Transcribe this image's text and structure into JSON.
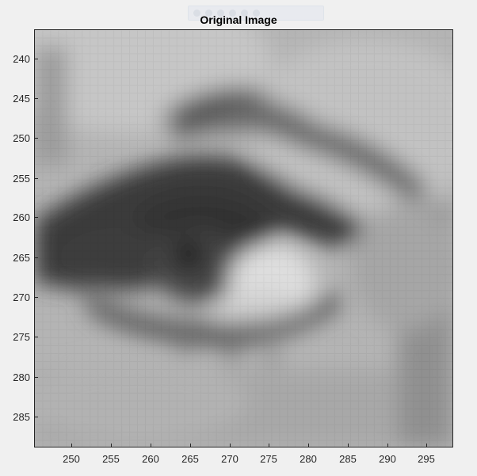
{
  "figure": {
    "title": "Original Image",
    "toolbar_icons": [
      "pan-icon",
      "zoom-in-icon",
      "zoom-out-icon",
      "rotate-icon",
      "data-cursor-icon",
      "home-icon"
    ]
  },
  "chart_data": {
    "type": "heatmap",
    "colormap": "gray",
    "title": "Original Image",
    "xlim": [
      245.5,
      298.5
    ],
    "ylim": [
      237.5,
      288.5
    ],
    "y_direction": "reverse",
    "x_ticks": [
      250,
      255,
      260,
      265,
      270,
      275,
      280,
      285,
      290,
      295
    ],
    "y_ticks": [
      240,
      245,
      250,
      255,
      260,
      265,
      270,
      275,
      280,
      285
    ],
    "x_tick_labels": [
      "250",
      "255",
      "260",
      "265",
      "270",
      "275",
      "280",
      "285",
      "290",
      "295"
    ],
    "y_tick_labels": [
      "240",
      "245",
      "250",
      "255",
      "260",
      "265",
      "270",
      "275",
      "280",
      "285"
    ],
    "grid": false,
    "legend": "none"
  }
}
